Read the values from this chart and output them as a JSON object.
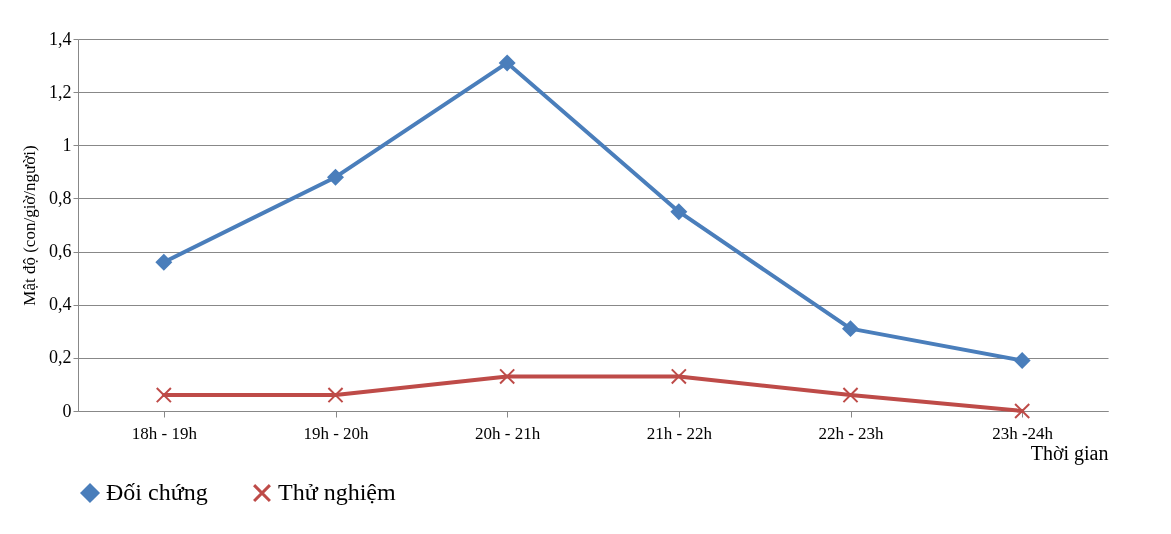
{
  "chart_data": {
    "type": "line",
    "xlabel": "Thời gian",
    "ylabel": "Mật độ (con/giờ/người)",
    "categories": [
      "18h - 19h",
      "19h - 20h",
      "20h - 21h",
      "21h - 22h",
      "22h - 23h",
      "23h -24h"
    ],
    "series": [
      {
        "name": "Đối chứng",
        "color": "#4a7ebb",
        "marker": "diamond",
        "values": [
          0.56,
          0.88,
          1.31,
          0.75,
          0.31,
          0.19
        ]
      },
      {
        "name": "Thử nghiệm",
        "color": "#be4b48",
        "marker": "cross",
        "values": [
          0.06,
          0.06,
          0.13,
          0.13,
          0.06,
          0
        ]
      }
    ],
    "ylim": [
      0,
      1.4
    ],
    "yticks": [
      0,
      {
        "value": 0.2,
        "label": "0,2"
      },
      {
        "value": 0.4,
        "label": "0,4"
      },
      {
        "value": 0.6,
        "label": "0,6"
      },
      {
        "value": 0.8,
        "label": "0,8"
      },
      1,
      {
        "value": 1.2,
        "label": "1,2"
      },
      {
        "value": 1.4,
        "label": "1,4"
      }
    ],
    "grid": "y",
    "legend": "bottom",
    "line_style": "solid"
  }
}
